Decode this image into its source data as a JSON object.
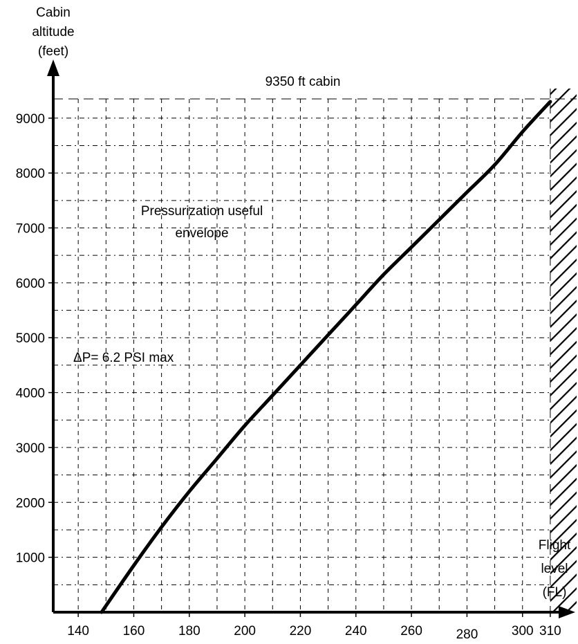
{
  "chart_data": {
    "type": "line",
    "title": "",
    "xlabel": "Flight level (FL)",
    "ylabel": "Cabin altitude (feet)",
    "xlabel_lines": [
      "Flight",
      "level",
      "(FL)"
    ],
    "ylabel_lines": [
      "Cabin",
      "altitude",
      "(feet)"
    ],
    "xlim": [
      131,
      316
    ],
    "ylim": [
      0,
      9350
    ],
    "x_ticks": [
      140,
      160,
      180,
      200,
      220,
      240,
      260,
      280,
      300,
      310
    ],
    "y_ticks": [
      1000,
      2000,
      3000,
      4000,
      5000,
      6000,
      7000,
      8000,
      9000
    ],
    "grid": true,
    "series": [
      {
        "x": [
          148.4,
          160,
          170,
          180,
          190,
          200,
          210,
          220,
          230,
          240,
          250,
          260,
          270,
          280,
          290,
          300,
          310
        ],
        "y": [
          0,
          850,
          1550,
          2200,
          2800,
          3400,
          3950,
          4500,
          5050,
          5600,
          6150,
          6650,
          7150,
          7650,
          8150,
          8750,
          9300
        ]
      }
    ],
    "reference_lines": [
      {
        "axis": "y",
        "value": 9350,
        "label": "9350 ft cabin"
      },
      {
        "axis": "x",
        "value": 310,
        "label": ""
      }
    ],
    "hatched_region": {
      "x_from": 310
    },
    "annotations": [
      {
        "text": "Pressurization useful",
        "at": [
          225,
          7500
        ]
      },
      {
        "text": "envelope",
        "at": [
          225,
          7000
        ]
      },
      {
        "text": "ΔP= 6.2 PSI max",
        "at": [
          148,
          4900
        ]
      }
    ]
  }
}
